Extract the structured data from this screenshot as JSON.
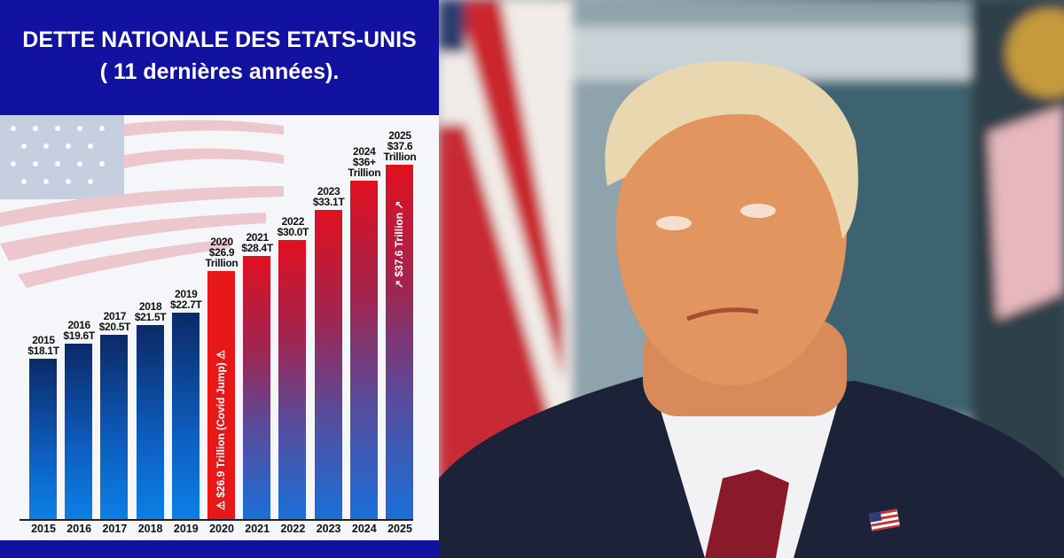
{
  "header": {
    "line1": "DETTE NATIONALE DES ETATS-UNIS",
    "line2": "( 11 dernières années)."
  },
  "chart_data": {
    "type": "bar",
    "categories": [
      "2015",
      "2016",
      "2017",
      "2018",
      "2019",
      "2020",
      "2021",
      "2022",
      "2023",
      "2024",
      "2025"
    ],
    "values": [
      18.1,
      19.6,
      20.5,
      21.5,
      22.7,
      26.9,
      28.4,
      30.0,
      33.1,
      36,
      37.6
    ],
    "unit": "Trillion USD",
    "data_labels": [
      [
        "2015",
        "$18.1T"
      ],
      [
        "2016",
        "$19.6T"
      ],
      [
        "2017",
        "$20.5T"
      ],
      [
        "2018",
        "$21.5T"
      ],
      [
        "2019",
        "$22.7T"
      ],
      [
        "2020",
        "$26.9",
        "Trillion"
      ],
      [
        "2021",
        "$28.4T"
      ],
      [
        "2022",
        "$30.0T"
      ],
      [
        "2023",
        "$33.1T"
      ],
      [
        "2024",
        "$36+",
        "Trillion"
      ],
      [
        "2025",
        "$37.6",
        "Trillion"
      ]
    ],
    "annotations": {
      "bar_2020": "$26.9 Trillion (Covid Jump)",
      "bar_2025": "$37.6 Trillion"
    },
    "colors": {
      "pre_2020": "#0a3a8a",
      "covid_2020": "#e81818",
      "post_2020_top": "#e0101f",
      "post_2020_bottom": "#1a6fd8"
    },
    "grid": false,
    "legend": "none"
  },
  "photo": {
    "icons": [
      "us-flag-background",
      "us-flag-lapel-pin-icon"
    ]
  }
}
